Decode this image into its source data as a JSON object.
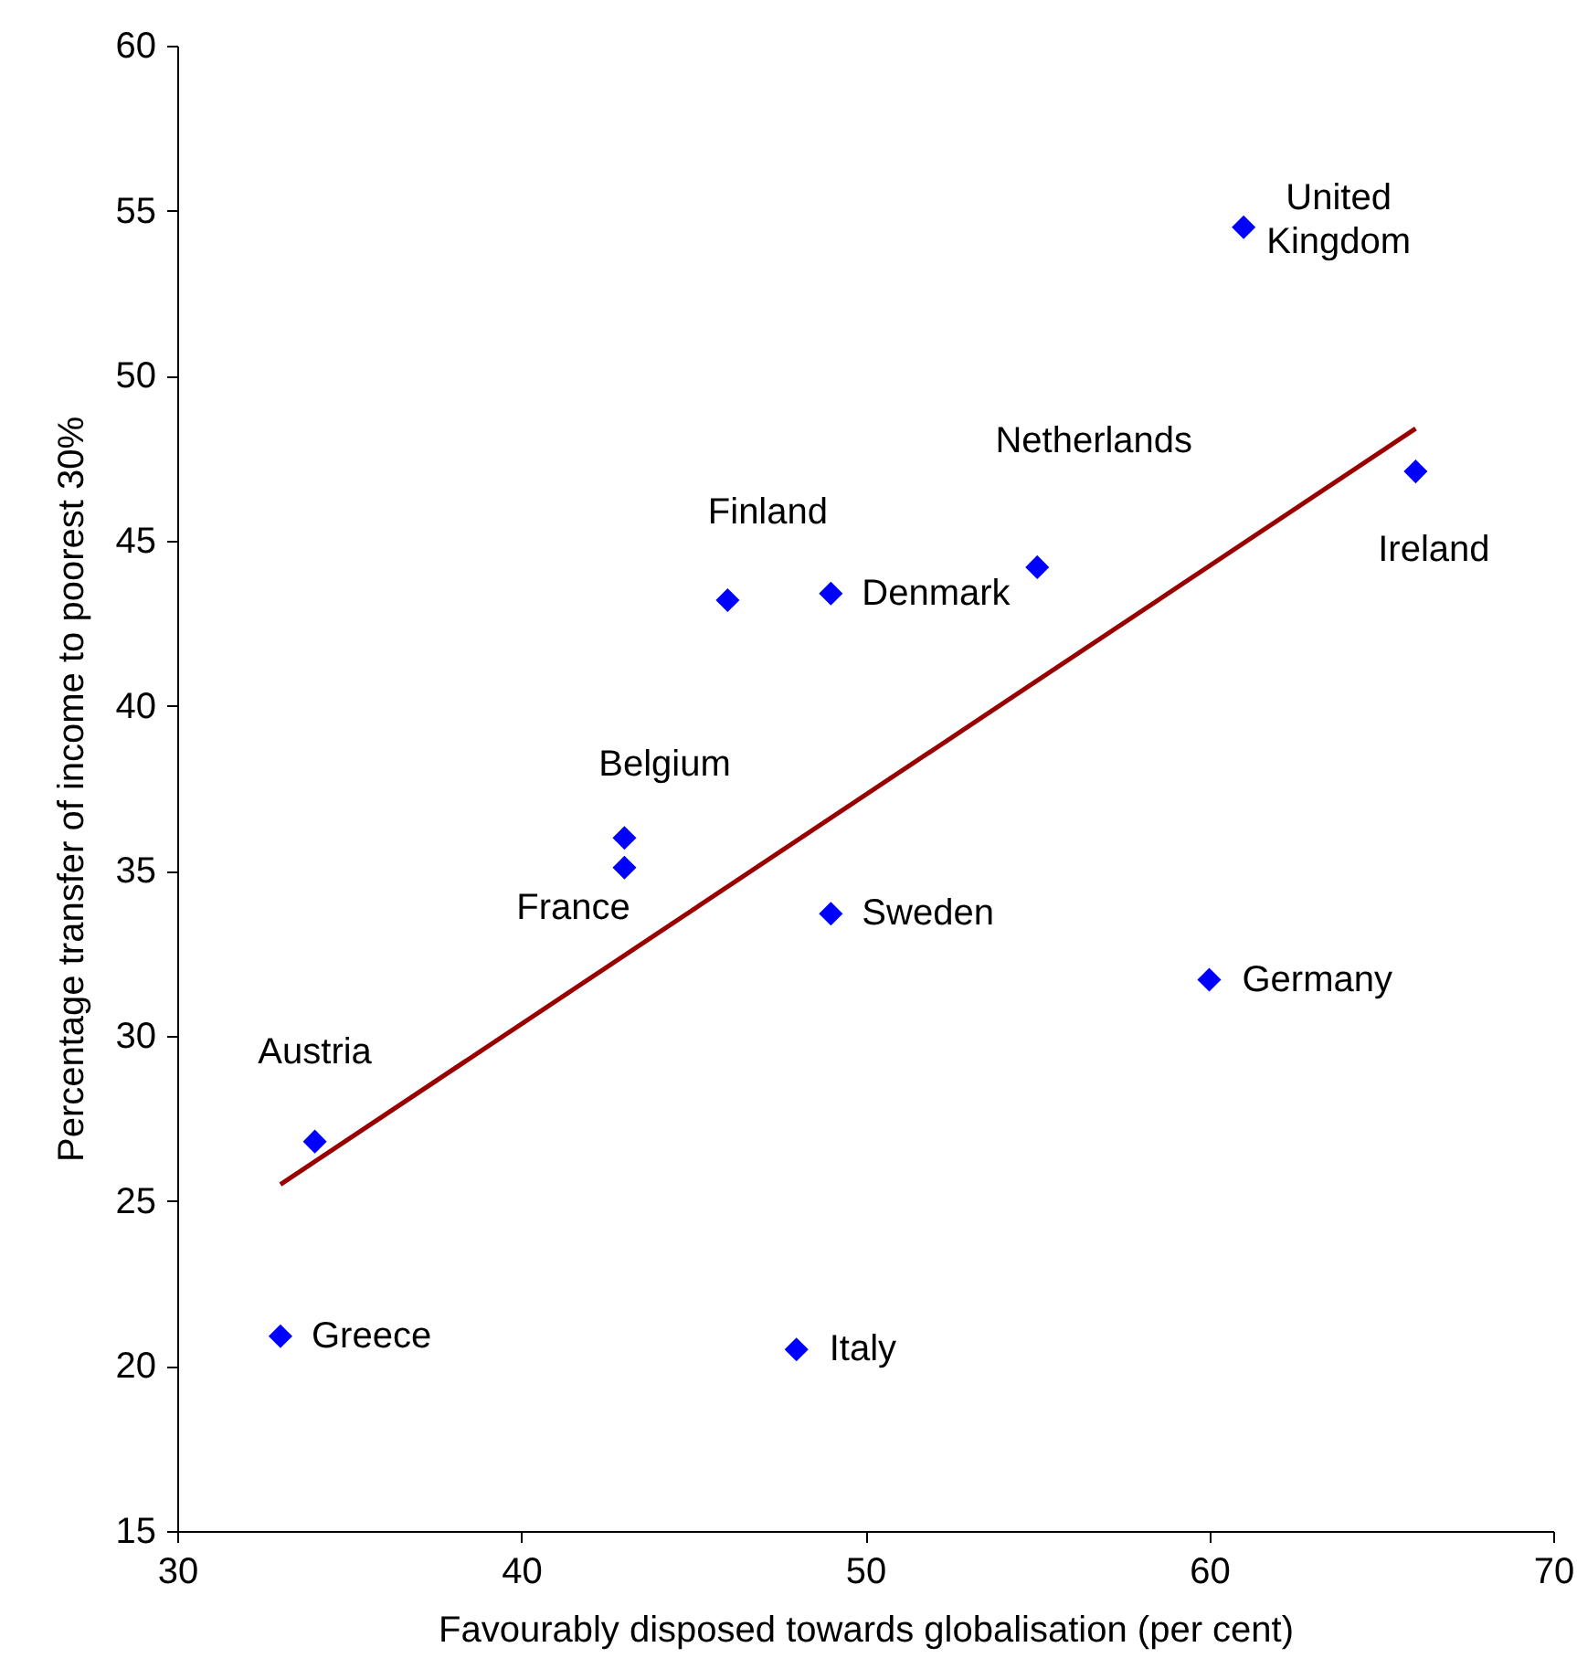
{
  "chart_data": {
    "type": "scatter",
    "xlabel": "Favourably disposed towards globalisation (per cent)",
    "ylabel": "Percentage transfer of income to poorest 30%",
    "xlim": [
      30,
      70
    ],
    "xticks": [
      30,
      40,
      50,
      60,
      70
    ],
    "ylim": [
      15,
      60
    ],
    "yticks": [
      15,
      20,
      25,
      30,
      35,
      40,
      45,
      50,
      55,
      60
    ],
    "grid": false,
    "legend": false,
    "series": [
      {
        "color": "#0000ff",
        "marker": "diamond",
        "x": [
          61,
          66,
          55,
          49,
          46,
          43,
          43,
          49,
          60,
          34,
          33,
          48
        ],
        "values": [
          54.5,
          47.1,
          44.2,
          43.4,
          43.2,
          36.0,
          35.1,
          33.7,
          31.7,
          26.8,
          20.9,
          20.5
        ]
      },
      {
        "type": "line",
        "color": "#990000",
        "x": [
          33,
          66
        ],
        "values": [
          25.5,
          48.4
        ]
      }
    ],
    "annotations": [
      {
        "text": "United Kingdom",
        "x": 61,
        "y": 54.5
      },
      {
        "text": "Ireland",
        "x": 66,
        "y": 47.1
      },
      {
        "text": "Netherlands",
        "x": 55,
        "y": 44.2
      },
      {
        "text": "Denmark",
        "x": 49,
        "y": 43.4
      },
      {
        "text": "Finland",
        "x": 46,
        "y": 43.2
      },
      {
        "text": "Belgium",
        "x": 43,
        "y": 36.0
      },
      {
        "text": "France",
        "x": 43,
        "y": 35.1
      },
      {
        "text": "Sweden",
        "x": 49,
        "y": 33.7
      },
      {
        "text": "Germany",
        "x": 60,
        "y": 31.7
      },
      {
        "text": "Austria",
        "x": 34,
        "y": 26.8
      },
      {
        "text": "Greece",
        "x": 33,
        "y": 20.9
      },
      {
        "text": "Italy",
        "x": 48,
        "y": 20.5
      }
    ]
  }
}
